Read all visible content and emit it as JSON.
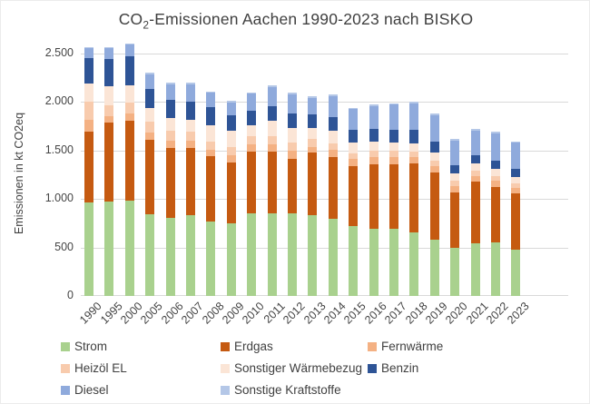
{
  "title": {
    "prefix": "CO",
    "subscript": "2",
    "suffix": "-Emissionen Aachen 1990-2023 nach BISKO"
  },
  "y_axis": {
    "label": "Emissionen in kt CO2eq",
    "tick_labels": [
      "0",
      "500",
      "1.000",
      "1.500",
      "2.000",
      "2.500"
    ],
    "tick_values": [
      0,
      500,
      1000,
      1500,
      2000,
      2500
    ]
  },
  "chart_data": {
    "type": "bar",
    "stacked": true,
    "title": "CO2-Emissionen Aachen 1990-2023 nach BISKO",
    "xlabel": "",
    "ylabel": "Emissionen in kt CO2eq",
    "ylim": [
      0,
      2500
    ],
    "grid": true,
    "legend_position": "bottom",
    "categories": [
      "1990",
      "1995",
      "2000",
      "2005",
      "2006",
      "2007",
      "2008",
      "2009",
      "2010",
      "2011",
      "2012",
      "2013",
      "2014",
      "2015",
      "2016",
      "2017",
      "2018",
      "2019",
      "2020",
      "2021",
      "2022",
      "2023"
    ],
    "series": [
      {
        "name": "Strom",
        "color": "#A9D18E",
        "values": [
          965,
          975,
          985,
          845,
          810,
          830,
          765,
          745,
          850,
          855,
          855,
          835,
          795,
          725,
          690,
          690,
          660,
          580,
          500,
          545,
          550,
          480
        ]
      },
      {
        "name": "Erdgas",
        "color": "#C55A11",
        "values": [
          730,
          810,
          820,
          765,
          720,
          700,
          680,
          630,
          640,
          630,
          560,
          640,
          640,
          615,
          670,
          670,
          705,
          690,
          565,
          635,
          575,
          575
        ]
      },
      {
        "name": "Fernwärme",
        "color": "#F4B183",
        "values": [
          125,
          65,
          80,
          80,
          75,
          70,
          60,
          75,
          70,
          75,
          80,
          65,
          70,
          70,
          70,
          70,
          65,
          70,
          65,
          60,
          60,
          55
        ]
      },
      {
        "name": "Heizöl EL",
        "color": "#F8CBAD",
        "values": [
          180,
          115,
          110,
          105,
          100,
          95,
          90,
          90,
          90,
          85,
          85,
          80,
          70,
          65,
          65,
          65,
          60,
          60,
          55,
          55,
          55,
          50
        ]
      },
      {
        "name": "Sonstiger Wärmebezug",
        "color": "#FBE5D6",
        "values": [
          195,
          195,
          175,
          140,
          130,
          125,
          170,
          160,
          115,
          160,
          155,
          115,
          125,
          105,
          95,
          90,
          85,
          80,
          75,
          70,
          70,
          65
        ]
      },
      {
        "name": "Benzin",
        "color": "#2E5496",
        "values": [
          255,
          285,
          300,
          205,
          190,
          185,
          185,
          160,
          145,
          150,
          145,
          135,
          145,
          130,
          130,
          130,
          140,
          115,
          90,
          85,
          85,
          85
        ]
      },
      {
        "name": "Diesel",
        "color": "#8FAADC",
        "values": [
          110,
          115,
          120,
          145,
          160,
          180,
          145,
          135,
          175,
          200,
          200,
          175,
          220,
          215,
          240,
          260,
          270,
          270,
          255,
          255,
          285,
          270
        ]
      },
      {
        "name": "Sonstige Kraftstoffe",
        "color": "#B4C7E7",
        "values": [
          10,
          10,
          10,
          15,
          15,
          15,
          15,
          15,
          15,
          20,
          20,
          15,
          15,
          15,
          15,
          15,
          15,
          15,
          15,
          15,
          15,
          15
        ]
      }
    ]
  }
}
